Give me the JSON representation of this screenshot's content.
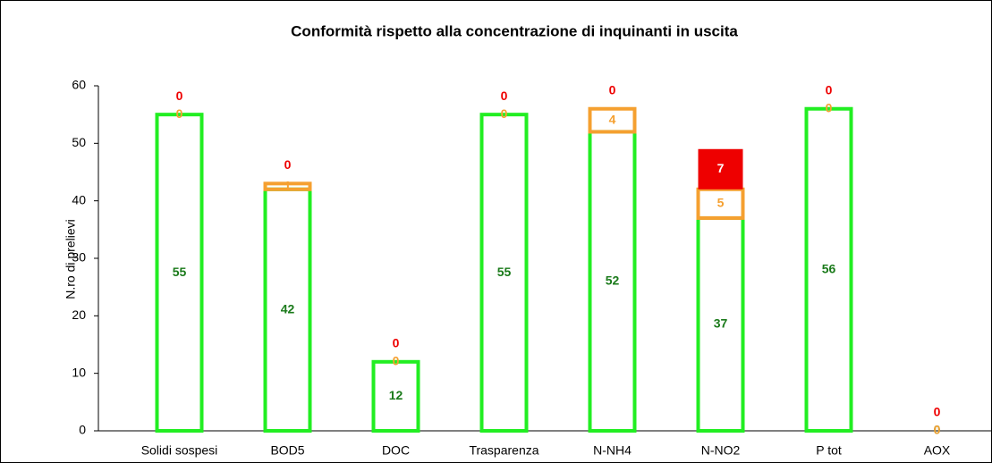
{
  "chart_data": {
    "type": "stacked_bar",
    "title": "Conformità rispetto alla concentrazione di inquinanti in uscita",
    "y_label": "N.ro di prelievi",
    "categories": [
      "Solidi sospesi",
      "BOD5",
      "DOC",
      "Trasparenza",
      "N-NH4",
      "N-NO2",
      "P tot",
      "AOX"
    ],
    "series": [
      {
        "color": "#22ee22",
        "label_color": "#1a7a1a",
        "filled": false,
        "values": [
          55,
          42,
          12,
          55,
          52,
          37,
          56,
          0
        ]
      },
      {
        "color": "#f5a030",
        "label_color": "#f5a030",
        "filled": false,
        "values": [
          0,
          1,
          0,
          0,
          4,
          5,
          0,
          0
        ]
      },
      {
        "color": "#ee0000",
        "label_color": "#ee0000",
        "filled": true,
        "values": [
          0,
          0,
          0,
          0,
          0,
          7,
          0,
          0
        ]
      }
    ],
    "ylim": [
      0,
      60
    ],
    "yticks": [
      0,
      10,
      20,
      30,
      40,
      50,
      60
    ]
  }
}
